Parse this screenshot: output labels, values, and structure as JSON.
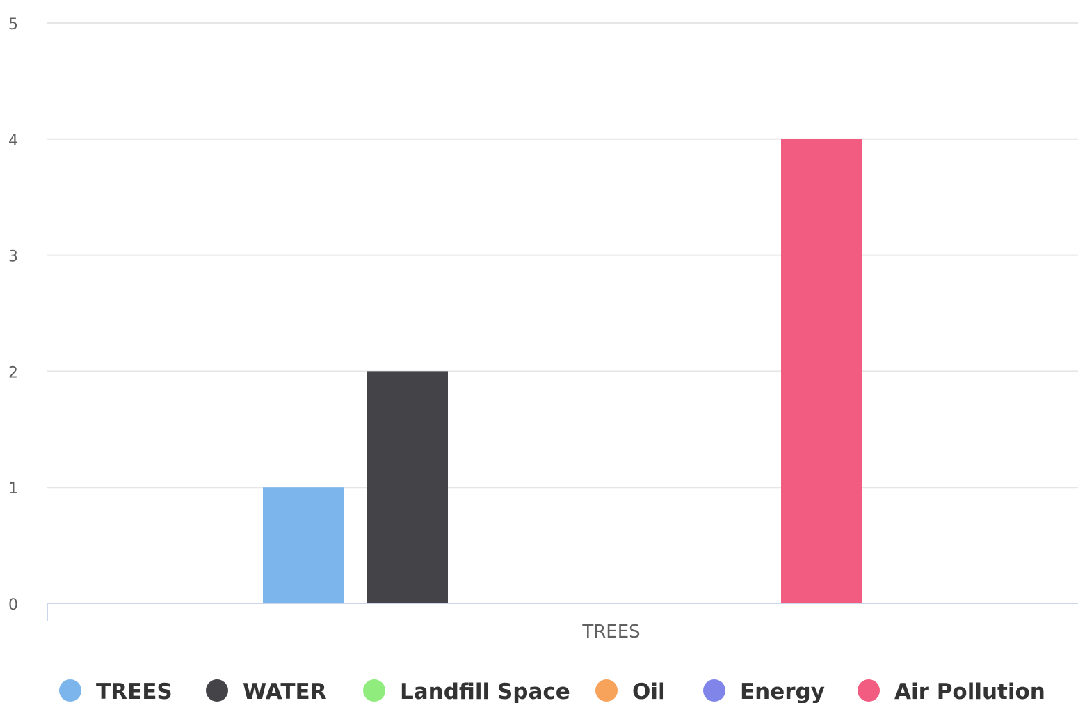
{
  "chart_data": {
    "type": "bar",
    "categories": [
      "TREES"
    ],
    "series": [
      {
        "name": "TREES",
        "values": [
          1
        ],
        "color": "#7cb5ec"
      },
      {
        "name": "WATER",
        "values": [
          2
        ],
        "color": "#434348"
      },
      {
        "name": "Landfill Space",
        "values": [
          0
        ],
        "color": "#90ed7d"
      },
      {
        "name": "Oil",
        "values": [
          0
        ],
        "color": "#f7a35c"
      },
      {
        "name": "Energy",
        "values": [
          0
        ],
        "color": "#8085e9"
      },
      {
        "name": "Air Pollution",
        "values": [
          4
        ],
        "color": "#f15c80"
      }
    ],
    "yticks": [
      "0",
      "1",
      "2",
      "3",
      "4",
      "5"
    ],
    "ylim": [
      0,
      5
    ],
    "grid": true,
    "legend_position": "bottom"
  }
}
